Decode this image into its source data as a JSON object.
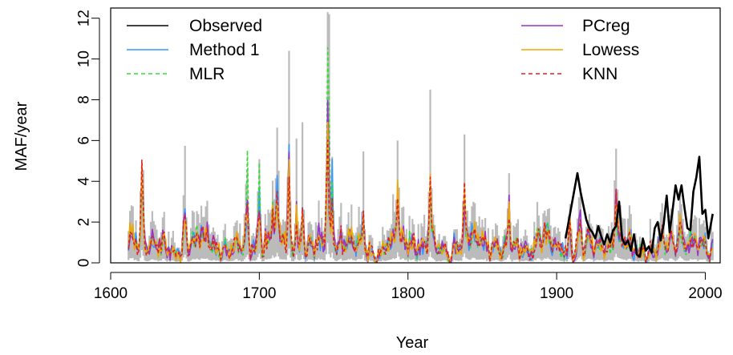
{
  "chart_data": {
    "type": "line",
    "xlabel": "Year",
    "ylabel": "MAF/year",
    "xlim": [
      1600,
      2010
    ],
    "ylim": [
      0,
      12.5
    ],
    "x_ticks": [
      1600,
      1700,
      1800,
      1900,
      2000
    ],
    "y_ticks": [
      0,
      2,
      4,
      6,
      8,
      10,
      12
    ],
    "grid": false,
    "legend": [
      {
        "label": "Observed",
        "color": "#000000",
        "style": "solid",
        "column": "left"
      },
      {
        "label": "Method 1",
        "color": "#3399ff",
        "style": "solid",
        "column": "left"
      },
      {
        "label": "MLR",
        "color": "#33dd33",
        "style": "dashed",
        "column": "left"
      },
      {
        "label": "PCreg",
        "color": "#9933cc",
        "style": "solid",
        "column": "right"
      },
      {
        "label": "Lowess",
        "color": "#f0a800",
        "style": "solid",
        "column": "right"
      },
      {
        "label": "KNN",
        "color": "#dd2222",
        "style": "dashed",
        "column": "right"
      }
    ],
    "band_color": "#bbbbbb",
    "series": [
      {
        "name": "Observed",
        "color": "#000000",
        "style": "solid",
        "x": [
          1906,
          1909,
          1912,
          1914,
          1916,
          1918,
          1920,
          1922,
          1924,
          1926,
          1928,
          1930,
          1932,
          1934,
          1936,
          1938,
          1940,
          1942,
          1944,
          1946,
          1948,
          1950,
          1952,
          1954,
          1956,
          1958,
          1960,
          1962,
          1964,
          1966,
          1968,
          1970,
          1972,
          1974,
          1976,
          1978,
          1980,
          1982,
          1984,
          1986,
          1988,
          1990,
          1992,
          1994,
          1996,
          1998,
          2000,
          2002,
          2005
        ],
        "y": [
          1.2,
          2.4,
          3.6,
          4.4,
          3.5,
          2.8,
          2.1,
          1.7,
          1.5,
          1.2,
          1.8,
          1.3,
          0.9,
          1.4,
          1.0,
          1.6,
          1.8,
          3.0,
          1.2,
          0.9,
          1.1,
          0.6,
          1.4,
          0.4,
          0.3,
          1.2,
          0.6,
          0.8,
          0.5,
          1.7,
          2.0,
          1.1,
          1.9,
          3.3,
          1.5,
          2.6,
          3.8,
          3.1,
          3.8,
          2.7,
          1.7,
          1.6,
          3.5,
          4.2,
          5.2,
          2.4,
          2.6,
          1.2,
          2.4
        ]
      }
    ]
  }
}
